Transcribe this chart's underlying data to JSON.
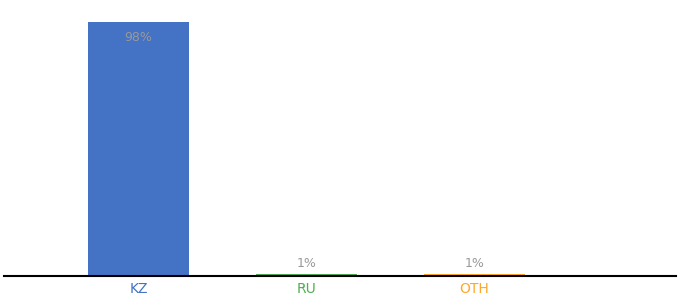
{
  "categories": [
    "KZ",
    "RU",
    "OTH"
  ],
  "values": [
    98,
    1,
    1
  ],
  "bar_colors": [
    "#4472c4",
    "#4caf50",
    "#ffa726"
  ],
  "labels": [
    "98%",
    "1%",
    "1%"
  ],
  "label_color": "#999999",
  "ylim": [
    0,
    105
  ],
  "background_color": "#ffffff",
  "bar_width": 0.6,
  "figsize": [
    6.8,
    3.0
  ],
  "dpi": 100,
  "x_positions": [
    1,
    2,
    3
  ],
  "xlim": [
    0.2,
    4.2
  ]
}
